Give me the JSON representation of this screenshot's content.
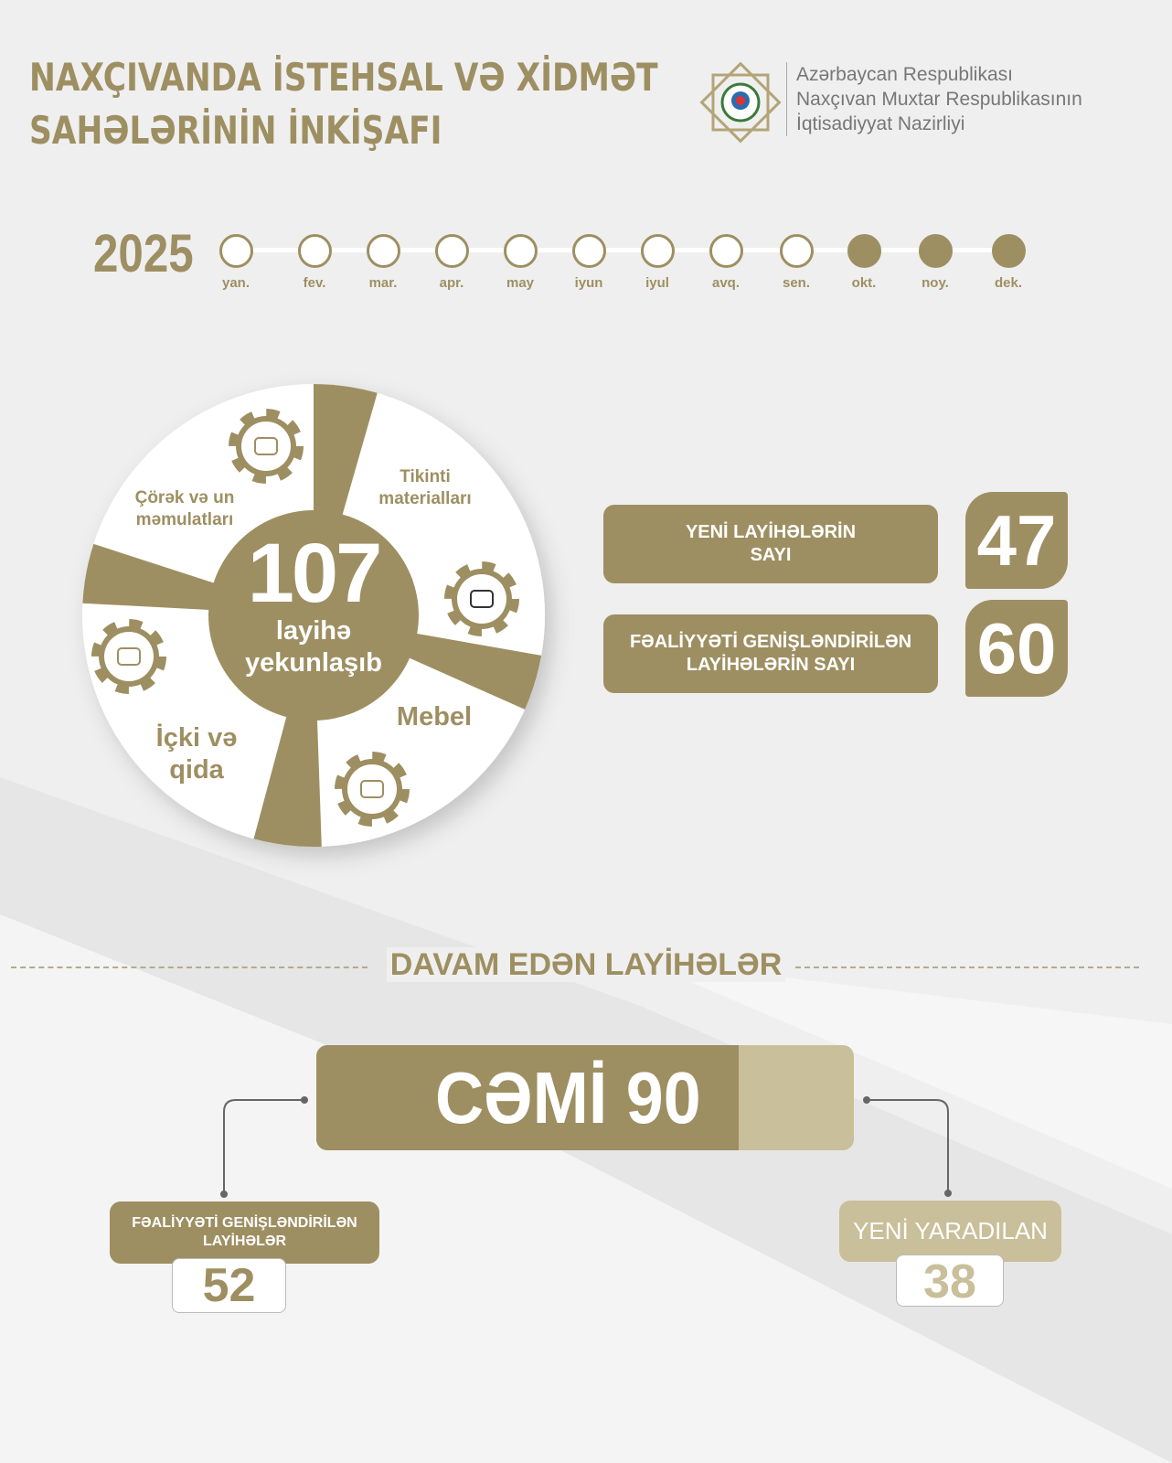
{
  "header": {
    "title_line1": "NAXÇIVANDA İSTEHSAL VƏ XİDMƏT",
    "title_line2": "SAHƏLƏRİNİN İNKİŞAFI",
    "org_line1": "Azərbaycan Respublikası",
    "org_line2": "Naxçıvan Muxtar Respublikasının",
    "org_line3": "İqtisadiyyat Nazirliyi",
    "logo_icon": "emblem-icon"
  },
  "timeline": {
    "year": "2025",
    "months": [
      {
        "label": "yan.",
        "active": false
      },
      {
        "label": "fev.",
        "active": false
      },
      {
        "label": "mar.",
        "active": false
      },
      {
        "label": "apr.",
        "active": false
      },
      {
        "label": "may",
        "active": false
      },
      {
        "label": "iyun",
        "active": false
      },
      {
        "label": "iyul",
        "active": false
      },
      {
        "label": "avq.",
        "active": false
      },
      {
        "label": "sen.",
        "active": false
      },
      {
        "label": "okt.",
        "active": true
      },
      {
        "label": "noy.",
        "active": true
      },
      {
        "label": "dek.",
        "active": true
      }
    ]
  },
  "wheel": {
    "total": "107",
    "total_label1": "layihə",
    "total_label2": "yekunlaşıb",
    "sectors": [
      {
        "label1": "Çörək və un",
        "label2": "məmulatları",
        "icon": "bread-icon"
      },
      {
        "label1": "Tikinti",
        "label2": "materialları",
        "icon": "building-materials-icon"
      },
      {
        "label1": "Mebel",
        "label2": "",
        "icon": "sofa-icon"
      },
      {
        "label1": "İçki və",
        "label2": "qida",
        "icon": "food-drink-icon"
      }
    ]
  },
  "stats": [
    {
      "label1": "YENİ LAYİHƏLƏRİN",
      "label2": "SAYI",
      "value": "47"
    },
    {
      "label1": "FƏALİYYƏTİ GENİŞLƏNDİRİLƏN",
      "label2": "LAYİHƏLƏRİN SAYI",
      "value": "60"
    }
  ],
  "ongoing": {
    "title": "DAVAM EDƏN LAYİHƏLƏR",
    "total": "CƏMİ 90",
    "expanded": {
      "label1": "FƏALİYYƏTİ GENİŞLƏNDİRİLƏN",
      "label2": "LAYİHƏLƏR",
      "value": "52"
    },
    "new": {
      "label": "YENİ YARADILAN",
      "value": "38"
    }
  },
  "colors": {
    "gold": "#9e8f62",
    "light_gold": "#c9bf9a",
    "background": "#efefef"
  }
}
